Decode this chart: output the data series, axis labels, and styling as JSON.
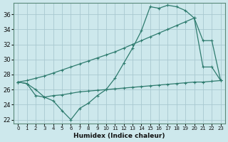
{
  "xlabel": "Humidex (Indice chaleur)",
  "bg_color": "#cde8ec",
  "grid_color": "#a8c8d0",
  "line_color": "#2e7b6e",
  "xlim": [
    -0.5,
    23.5
  ],
  "ylim": [
    21.5,
    37.5
  ],
  "xticks": [
    0,
    1,
    2,
    3,
    4,
    5,
    6,
    7,
    8,
    9,
    10,
    11,
    12,
    13,
    14,
    15,
    16,
    17,
    18,
    19,
    20,
    21,
    22,
    23
  ],
  "yticks": [
    22,
    24,
    26,
    28,
    30,
    32,
    34,
    36
  ],
  "line1_x": [
    0,
    1,
    2,
    3,
    4,
    5,
    6,
    7,
    8,
    9,
    10,
    11,
    12,
    13,
    14,
    15,
    16,
    17,
    18,
    19,
    20,
    21,
    22,
    23
  ],
  "line1_y": [
    27.0,
    26.8,
    26.0,
    25.0,
    24.5,
    23.2,
    22.0,
    23.5,
    24.2,
    25.2,
    26.0,
    27.5,
    29.5,
    31.5,
    33.8,
    37.0,
    36.8,
    37.2,
    37.0,
    36.5,
    35.5,
    29.0,
    29.0,
    27.2
  ],
  "line2_x": [
    0,
    1,
    2,
    3,
    4,
    5,
    6,
    7,
    8,
    9,
    10,
    11,
    12,
    13,
    14,
    15,
    16,
    17,
    18,
    19,
    20,
    21,
    22,
    23
  ],
  "line2_y": [
    27.0,
    27.2,
    27.5,
    27.8,
    28.2,
    28.6,
    29.0,
    29.4,
    29.8,
    30.2,
    30.6,
    31.0,
    31.5,
    32.0,
    32.5,
    33.0,
    33.5,
    34.0,
    34.5,
    35.0,
    35.5,
    32.5,
    32.5,
    27.2
  ],
  "line3_x": [
    0,
    1,
    2,
    3,
    4,
    5,
    6,
    7,
    8,
    9,
    10,
    11,
    12,
    13,
    14,
    15,
    16,
    17,
    18,
    19,
    20,
    21,
    22,
    23
  ],
  "line3_y": [
    27.0,
    26.8,
    25.2,
    25.0,
    25.2,
    25.3,
    25.5,
    25.7,
    25.8,
    25.9,
    26.0,
    26.1,
    26.2,
    26.3,
    26.4,
    26.5,
    26.6,
    26.7,
    26.8,
    26.9,
    27.0,
    27.0,
    27.1,
    27.2
  ]
}
